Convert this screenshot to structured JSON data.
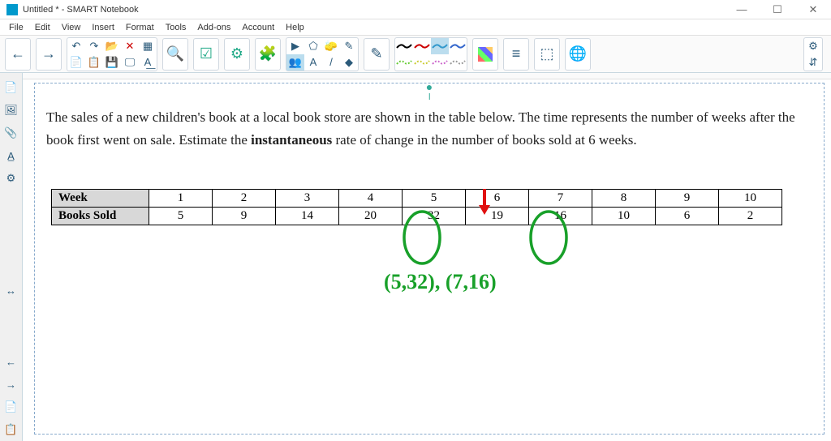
{
  "window": {
    "title": "Untitled * - SMART Notebook",
    "icon_color": "#0099cc"
  },
  "menubar": [
    "File",
    "Edit",
    "View",
    "Insert",
    "Format",
    "Tools",
    "Add-ons",
    "Account",
    "Help"
  ],
  "toolbar": {
    "nav": {
      "prev": "←",
      "next": "→"
    },
    "row1": [
      "↶",
      "↷",
      "📂",
      "✕",
      "▦"
    ],
    "row2": [
      "📄",
      "📋",
      "💾",
      "🖵",
      "A͟"
    ],
    "zoom": "🔍",
    "check": "☑",
    "gear": "⚙",
    "puzzle": "🧩",
    "pointer_row1": [
      "▶",
      "⬠",
      "🧽",
      "✎"
    ],
    "pointer_row2": [
      "👥",
      "A",
      "/",
      "◆"
    ],
    "pen": "✎",
    "line_colors_r1": [
      "#000000",
      "#cc0000",
      "#3399cc",
      "#3366cc"
    ],
    "line_colors_r2": [
      "#66cc33",
      "#cccc33",
      "#cc66cc",
      "#999999"
    ],
    "palette": "▦",
    "style": "≡",
    "steps": "⬚",
    "globe": "🌐",
    "right_gear": "⚙",
    "right_arrows": "⇵"
  },
  "sidepanel": [
    "📄",
    "🖼",
    "📎",
    "A̲",
    "⚙"
  ],
  "sidepanel_bottom": [
    "↔",
    "←",
    "→",
    "📄",
    "📋"
  ],
  "problem": {
    "text_before": "The sales of a new children's book at a local book store are shown in the table below. The time represents the number of weeks after the book first went on sale. Estimate the ",
    "bold": "instantaneous",
    "text_after": " rate of change in the number of books sold at 6 weeks."
  },
  "table": {
    "header_label": "Week",
    "row_label": "Books Sold",
    "weeks": [
      "1",
      "2",
      "3",
      "4",
      "5",
      "6",
      "7",
      "8",
      "9",
      "10"
    ],
    "values": [
      "5",
      "9",
      "14",
      "20",
      "32",
      "19",
      "16",
      "10",
      "6",
      "2"
    ]
  },
  "annotations": {
    "arrow_color": "#e01010",
    "circle_color": "#18a029",
    "coords": "(5,32), (7,16)"
  }
}
